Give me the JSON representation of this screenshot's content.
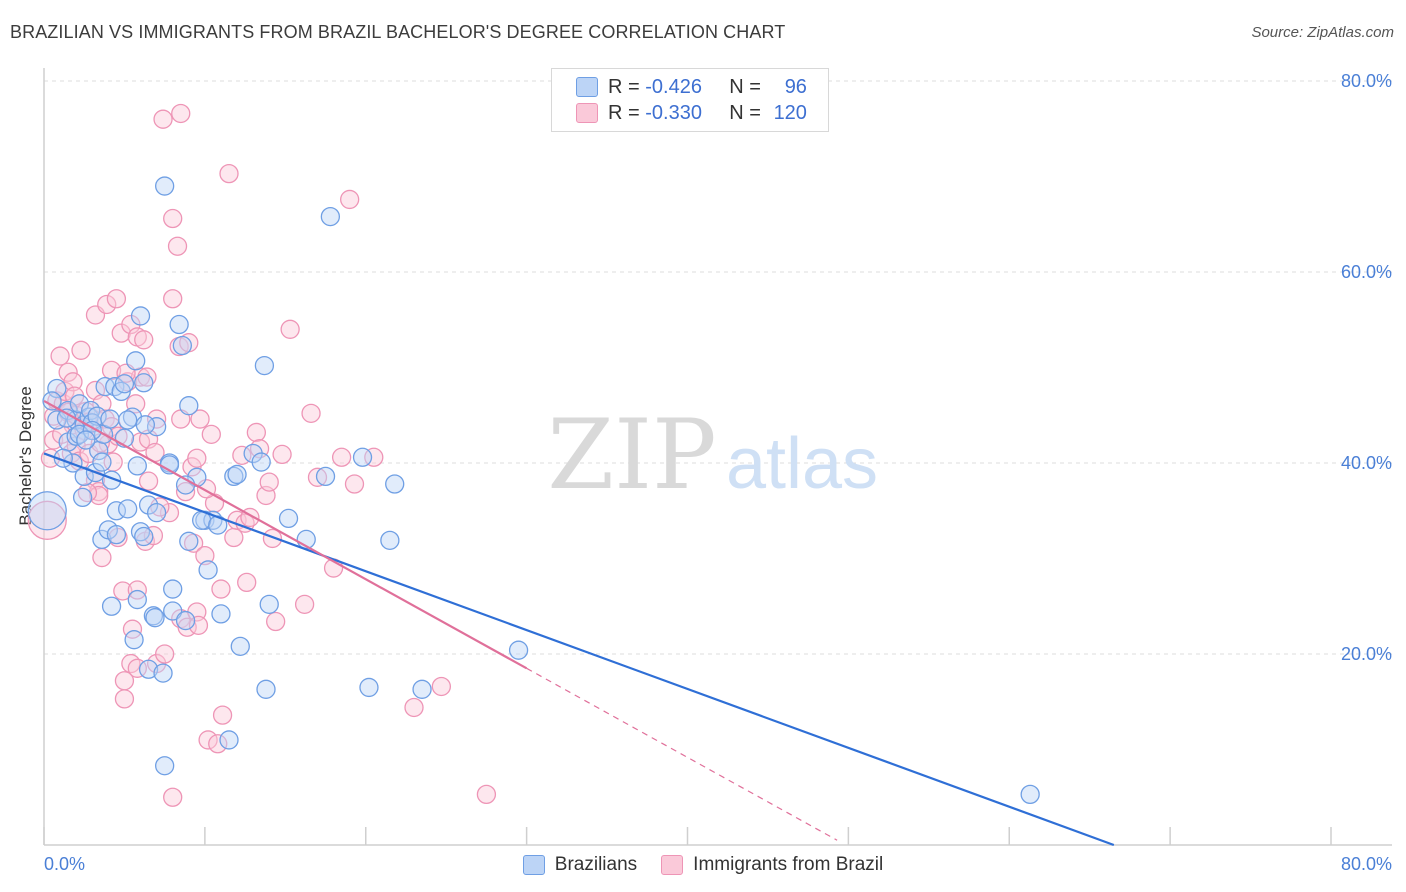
{
  "title": "BRAZILIAN VS IMMIGRANTS FROM BRAZIL BACHELOR'S DEGREE CORRELATION CHART",
  "source": "Source: ZipAtlas.com",
  "watermark": {
    "zip": "ZIP",
    "atlas": "atlas"
  },
  "legend_top": {
    "rows": [
      {
        "r_label": "R =",
        "r_value": "-0.426",
        "n_label": "N =",
        "n_value": "96"
      },
      {
        "r_label": "R =",
        "r_value": "-0.330",
        "n_label": "N =",
        "n_value": "120"
      }
    ]
  },
  "legend_bottom": {
    "series1": "Brazilians",
    "series2": "Immigrants from Brazil"
  },
  "colors": {
    "blue_fill": "#bcd4f6",
    "blue_stroke": "#6f9fe4",
    "blue_line": "#2f6fd6",
    "pink_fill": "#fac9d9",
    "pink_stroke": "#ee95b6",
    "pink_line": "#e0709a",
    "tick_text": "#4a7fd6"
  },
  "chart_data": {
    "type": "scatter",
    "title": "BRAZILIAN VS IMMIGRANTS FROM BRAZIL BACHELOR'S DEGREE CORRELATION CHART",
    "xlabel": "",
    "ylabel": "Bachelor's Degree",
    "xlim": [
      0,
      80
    ],
    "ylim": [
      0,
      80
    ],
    "x_tick_labels": [
      "0.0%",
      "80.0%"
    ],
    "y_tick_labels": [
      "20.0%",
      "40.0%",
      "60.0%",
      "80.0%"
    ],
    "y_ticks": [
      20,
      40,
      60,
      80
    ],
    "grid": true,
    "series": [
      {
        "name": "Brazilians",
        "R": -0.426,
        "N": 96,
        "trend": {
          "x1": 0,
          "y1": 41.0,
          "x2": 66.5,
          "y2": 0
        },
        "points": [
          [
            0.2,
            35
          ],
          [
            0.8,
            44.5
          ],
          [
            0.8,
            47.8
          ],
          [
            1.5,
            45.5
          ],
          [
            1.5,
            42.2
          ],
          [
            1.8,
            40
          ],
          [
            2,
            42.8
          ],
          [
            2,
            44.5
          ],
          [
            2.2,
            46.2
          ],
          [
            2.4,
            36.4
          ],
          [
            2.5,
            38.6
          ],
          [
            2.5,
            44
          ],
          [
            2.8,
            44.8
          ],
          [
            2.9,
            45.5
          ],
          [
            3,
            44.2
          ],
          [
            3.2,
            39
          ],
          [
            3.4,
            41.3
          ],
          [
            3.6,
            32
          ],
          [
            3.7,
            43
          ],
          [
            3.8,
            48
          ],
          [
            4,
            33
          ],
          [
            4.2,
            25
          ],
          [
            4.4,
            48
          ],
          [
            4.5,
            32.5
          ],
          [
            4.5,
            35
          ],
          [
            4.8,
            47.5
          ],
          [
            5,
            48.3
          ],
          [
            5,
            42.6
          ],
          [
            5.2,
            35.2
          ],
          [
            5.5,
            44.8
          ],
          [
            5.6,
            21.5
          ],
          [
            5.7,
            50.7
          ],
          [
            5.8,
            25.7
          ],
          [
            6,
            32.8
          ],
          [
            6,
            55.4
          ],
          [
            6.2,
            32.3
          ],
          [
            6.5,
            18.4
          ],
          [
            6.5,
            35.6
          ],
          [
            6.8,
            24
          ],
          [
            6.9,
            23.8
          ],
          [
            7,
            43.8
          ],
          [
            7,
            34.8
          ],
          [
            7.4,
            18
          ],
          [
            7.5,
            69
          ],
          [
            7.5,
            8.3
          ],
          [
            7.8,
            40
          ],
          [
            8,
            26.8
          ],
          [
            8,
            24.5
          ],
          [
            8.4,
            54.5
          ],
          [
            8.6,
            52.3
          ],
          [
            8.8,
            23.5
          ],
          [
            9,
            31.8
          ],
          [
            9,
            46
          ],
          [
            9.5,
            38.5
          ],
          [
            10,
            34
          ],
          [
            10.2,
            28.8
          ],
          [
            10.5,
            34
          ],
          [
            11,
            24.2
          ],
          [
            11.5,
            11
          ],
          [
            11.8,
            38.6
          ],
          [
            12.2,
            20.8
          ],
          [
            13,
            41
          ],
          [
            13.5,
            40.1
          ],
          [
            13.7,
            50.2
          ],
          [
            13.8,
            16.3
          ],
          [
            14,
            25.2
          ],
          [
            15.2,
            34.2
          ],
          [
            16.3,
            32
          ],
          [
            17.5,
            38.6
          ],
          [
            17.8,
            65.8
          ],
          [
            19.8,
            40.6
          ],
          [
            20.2,
            16.5
          ],
          [
            21.5,
            31.9
          ],
          [
            21.8,
            37.8
          ],
          [
            23.5,
            16.3
          ],
          [
            29.5,
            20.4
          ],
          [
            61.3,
            5.3
          ],
          [
            2.2,
            43
          ],
          [
            4.2,
            38.2
          ],
          [
            6.2,
            48.4
          ],
          [
            7.8,
            39.8
          ],
          [
            1.2,
            40.5
          ],
          [
            0.5,
            46.5
          ],
          [
            9.8,
            34
          ],
          [
            3.3,
            44.9
          ],
          [
            12,
            38.8
          ],
          [
            5.2,
            44.5
          ],
          [
            3,
            43.4
          ],
          [
            1.4,
            44.7
          ],
          [
            8.8,
            37.7
          ],
          [
            2.6,
            42.4
          ],
          [
            4.1,
            44.6
          ],
          [
            5.8,
            39.7
          ],
          [
            6.3,
            44
          ],
          [
            10.8,
            33.5
          ],
          [
            3.6,
            40.1
          ]
        ]
      },
      {
        "name": "Immigrants from Brazil",
        "R": -0.33,
        "N": 120,
        "trend": {
          "x1": 0,
          "y1": 46.5,
          "x2": 30,
          "y2": 18.5,
          "dashed_to": {
            "x": 49.3,
            "y": 0.5
          }
        },
        "points": [
          [
            0.2,
            34
          ],
          [
            0.4,
            40.5
          ],
          [
            0.6,
            44.9
          ],
          [
            0.8,
            46.5
          ],
          [
            1,
            51.2
          ],
          [
            1.2,
            46.2
          ],
          [
            1.3,
            47.5
          ],
          [
            1.5,
            49.5
          ],
          [
            1.5,
            45.3
          ],
          [
            1.7,
            41
          ],
          [
            1.8,
            48.5
          ],
          [
            1.8,
            44
          ],
          [
            2,
            41.8
          ],
          [
            2,
            45
          ],
          [
            2.2,
            40.2
          ],
          [
            2.3,
            51.8
          ],
          [
            2.5,
            43.4
          ],
          [
            2.6,
            45.4
          ],
          [
            2.8,
            44.3
          ],
          [
            2.8,
            41
          ],
          [
            3.2,
            38.2
          ],
          [
            3.2,
            55.5
          ],
          [
            3.2,
            47.6
          ],
          [
            3.4,
            37
          ],
          [
            3.4,
            36.6
          ],
          [
            3.6,
            30.1
          ],
          [
            3.6,
            46.2
          ],
          [
            3.8,
            44.6
          ],
          [
            3.9,
            56.6
          ],
          [
            4,
            42
          ],
          [
            4.2,
            49.7
          ],
          [
            4.2,
            43.8
          ],
          [
            4.5,
            57.2
          ],
          [
            4.6,
            32.2
          ],
          [
            4.6,
            42.8
          ],
          [
            4.8,
            53.6
          ],
          [
            4.9,
            26.6
          ],
          [
            5,
            15.3
          ],
          [
            5,
            17.2
          ],
          [
            5.2,
            48.5
          ],
          [
            5.4,
            19
          ],
          [
            5.4,
            54.5
          ],
          [
            5.5,
            22.6
          ],
          [
            5.7,
            46.2
          ],
          [
            5.8,
            18.5
          ],
          [
            5.8,
            53.2
          ],
          [
            6,
            49
          ],
          [
            6,
            42.2
          ],
          [
            6.2,
            52.9
          ],
          [
            6.3,
            31.8
          ],
          [
            6.5,
            42.5
          ],
          [
            6.5,
            38.1
          ],
          [
            6.8,
            32.4
          ],
          [
            7,
            44.6
          ],
          [
            7,
            19
          ],
          [
            7.4,
            76
          ],
          [
            7.5,
            20
          ],
          [
            7.8,
            34.8
          ],
          [
            8,
            57.2
          ],
          [
            8,
            65.6
          ],
          [
            8.3,
            62.7
          ],
          [
            8.4,
            52.2
          ],
          [
            8.5,
            23.7
          ],
          [
            8.5,
            76.6
          ],
          [
            8.5,
            44.6
          ],
          [
            8.8,
            37
          ],
          [
            8.9,
            22.8
          ],
          [
            9,
            52.6
          ],
          [
            9.2,
            39.6
          ],
          [
            9.3,
            31.6
          ],
          [
            9.5,
            24.4
          ],
          [
            9.5,
            40.5
          ],
          [
            9.7,
            44.6
          ],
          [
            10,
            30.3
          ],
          [
            10.2,
            11
          ],
          [
            10.4,
            43
          ],
          [
            10.6,
            35.8
          ],
          [
            10.8,
            10.6
          ],
          [
            11,
            26.8
          ],
          [
            11.1,
            13.6
          ],
          [
            11.5,
            70.3
          ],
          [
            11.8,
            32.2
          ],
          [
            12,
            34
          ],
          [
            12.5,
            33.7
          ],
          [
            12.6,
            27.5
          ],
          [
            12.8,
            34.3
          ],
          [
            13.2,
            43.2
          ],
          [
            13.4,
            41.5
          ],
          [
            13.8,
            36.6
          ],
          [
            14,
            38
          ],
          [
            14.2,
            32.1
          ],
          [
            14.4,
            23.4
          ],
          [
            14.8,
            40.9
          ],
          [
            15.3,
            54
          ],
          [
            16.2,
            25.2
          ],
          [
            16.6,
            45.2
          ],
          [
            17,
            38.5
          ],
          [
            18,
            29
          ],
          [
            18.5,
            40.6
          ],
          [
            19,
            67.6
          ],
          [
            19.3,
            37.8
          ],
          [
            20.5,
            40.6
          ],
          [
            23,
            14.4
          ],
          [
            24.7,
            16.6
          ],
          [
            27.5,
            5.3
          ],
          [
            5.8,
            26.7
          ],
          [
            8,
            5
          ],
          [
            0.6,
            42.4
          ],
          [
            1.1,
            43
          ],
          [
            2.7,
            36.9
          ],
          [
            3.5,
            42.1
          ],
          [
            4.3,
            40.1
          ],
          [
            6.4,
            49
          ],
          [
            7.2,
            35.4
          ],
          [
            9.6,
            23
          ],
          [
            10.1,
            37.3
          ],
          [
            12.3,
            40.8
          ],
          [
            1.9,
            47
          ],
          [
            5.1,
            49.4
          ],
          [
            6.9,
            41.1
          ]
        ]
      }
    ]
  }
}
